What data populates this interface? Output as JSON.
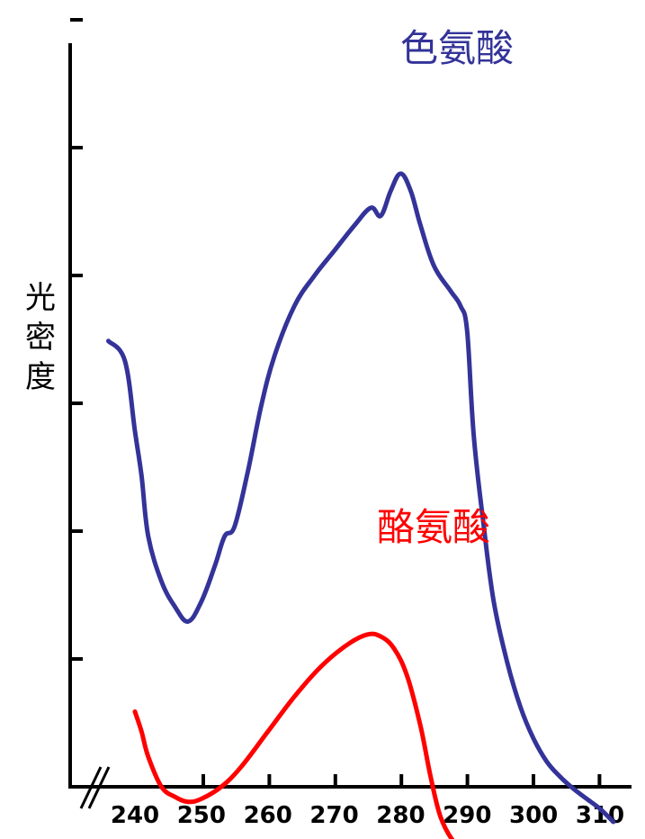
{
  "chart_data": {
    "type": "line",
    "title": "",
    "xlabel": "",
    "ylabel": "光密度",
    "x_ticks": [
      "240",
      "250",
      "260",
      "270",
      "280",
      "290",
      "300",
      "310"
    ],
    "xlim": [
      236,
      312
    ],
    "ylim": [
      0,
      7
    ],
    "y_tick_count": 6,
    "y_tick_labels_shown": false,
    "axis_break": "x",
    "grid": false,
    "legend": "inline labels",
    "series": [
      {
        "name": "色氨酸",
        "color": "#333399",
        "points": [
          [
            236.0,
            4.45
          ],
          [
            238.5,
            4.25
          ],
          [
            240.0,
            3.55
          ],
          [
            241.0,
            3.1
          ],
          [
            242.0,
            2.5
          ],
          [
            244.0,
            2.05
          ],
          [
            246.0,
            1.8
          ],
          [
            248.0,
            1.65
          ],
          [
            250.0,
            1.85
          ],
          [
            252.0,
            2.2
          ],
          [
            253.5,
            2.5
          ],
          [
            255.0,
            2.6
          ],
          [
            257.0,
            3.15
          ],
          [
            259.0,
            3.8
          ],
          [
            261.0,
            4.3
          ],
          [
            264.0,
            4.8
          ],
          [
            267.0,
            5.1
          ],
          [
            270.0,
            5.35
          ],
          [
            273.0,
            5.6
          ],
          [
            275.5,
            5.78
          ],
          [
            277.0,
            5.7
          ],
          [
            278.5,
            5.95
          ],
          [
            280.0,
            6.12
          ],
          [
            281.5,
            5.95
          ],
          [
            283.0,
            5.6
          ],
          [
            285.0,
            5.2
          ],
          [
            287.5,
            4.95
          ],
          [
            289.0,
            4.8
          ],
          [
            290.0,
            4.55
          ],
          [
            291.0,
            3.5
          ],
          [
            292.5,
            2.6
          ],
          [
            294.0,
            1.85
          ],
          [
            296.0,
            1.25
          ],
          [
            298.0,
            0.8
          ],
          [
            300.0,
            0.48
          ],
          [
            302.0,
            0.25
          ],
          [
            304.0,
            0.1
          ],
          [
            306.0,
            -0.02
          ],
          [
            308.0,
            -0.12
          ],
          [
            310.0,
            -0.22
          ],
          [
            312.0,
            -0.35
          ]
        ]
      },
      {
        "name": "酪氨酸",
        "color": "#ff0000",
        "points": [
          [
            240.0,
            0.75
          ],
          [
            241.0,
            0.55
          ],
          [
            242.0,
            0.3
          ],
          [
            244.0,
            0.0
          ],
          [
            246.0,
            -0.1
          ],
          [
            248.0,
            -0.15
          ],
          [
            250.0,
            -0.12
          ],
          [
            253.0,
            0.0
          ],
          [
            256.0,
            0.2
          ],
          [
            260.0,
            0.55
          ],
          [
            264.0,
            0.9
          ],
          [
            268.0,
            1.2
          ],
          [
            272.0,
            1.42
          ],
          [
            275.0,
            1.52
          ],
          [
            277.0,
            1.5
          ],
          [
            279.0,
            1.38
          ],
          [
            281.0,
            1.1
          ],
          [
            283.0,
            0.6
          ],
          [
            284.5,
            0.1
          ],
          [
            286.0,
            -0.3
          ],
          [
            288.0,
            -0.55
          ],
          [
            290.0,
            -0.65
          ],
          [
            292.0,
            -0.65
          ],
          [
            294.0,
            -0.6
          ]
        ]
      }
    ]
  }
}
